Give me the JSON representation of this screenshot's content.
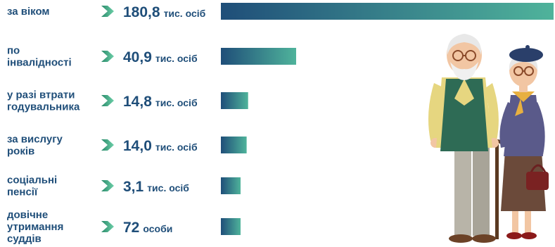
{
  "chart_data": {
    "type": "bar",
    "orientation": "horizontal",
    "categories": [
      [
        "за віком"
      ],
      [
        "по",
        "інвалідності"
      ],
      [
        "у разі втрати",
        "годувальника"
      ],
      [
        "за вислугу",
        "років"
      ],
      [
        "соціальні",
        "пенсії"
      ],
      [
        "довічне",
        "утримання",
        "суддів"
      ]
    ],
    "values": [
      180.8,
      40.9,
      14.8,
      14.0,
      3.1,
      0.072
    ],
    "value_labels": [
      {
        "number": "180,8",
        "unit": "тис. осіб"
      },
      {
        "number": "40,9",
        "unit": "тис. осіб"
      },
      {
        "number": "14,8",
        "unit": "тис. осіб"
      },
      {
        "number": "14,0",
        "unit": "тис. осіб"
      },
      {
        "number": "3,1",
        "unit": "тис. осіб"
      },
      {
        "number": "72",
        "unit": "особи"
      }
    ],
    "title": "",
    "xlabel": "",
    "ylabel": "",
    "grid": false,
    "legend": "none"
  },
  "colors": {
    "bar_start": "#1f4e79",
    "bar_end": "#4fb39b",
    "text": "#1f4e79",
    "arrow_start": "#2a8a6a",
    "arrow_end": "#6ccfa8"
  },
  "illustration": {
    "icon": "elderly-couple-icon"
  }
}
